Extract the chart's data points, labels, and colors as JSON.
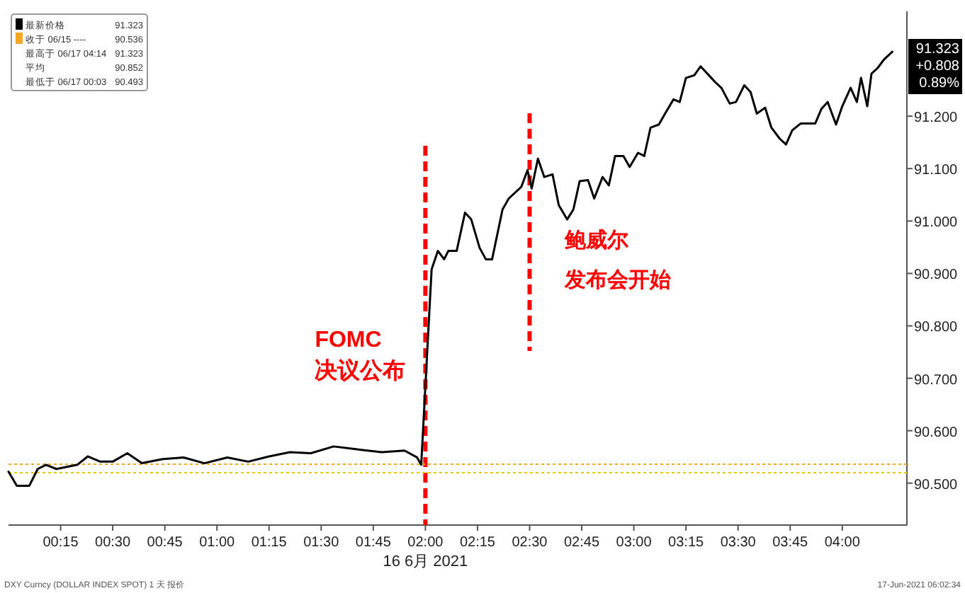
{
  "chart_data": {
    "type": "line",
    "xlabel": "16 6月 2021",
    "x": [
      0,
      0.04,
      0.1,
      0.14,
      0.18,
      0.23,
      0.33,
      0.38,
      0.44,
      0.5,
      0.57,
      0.64,
      0.74,
      0.84,
      0.94,
      1.05,
      1.15,
      1.25,
      1.35,
      1.45,
      1.56,
      1.66,
      1.79,
      1.9,
      1.96,
      1.98,
      2.02,
      2.03,
      2.06,
      2.09,
      2.11,
      2.15,
      2.19,
      2.22,
      2.26,
      2.29,
      2.32,
      2.37,
      2.4,
      2.46,
      2.49,
      2.51,
      2.54,
      2.57,
      2.61,
      2.64,
      2.68,
      2.71,
      2.74,
      2.78,
      2.81,
      2.85,
      2.88,
      2.91,
      2.95,
      2.98,
      3.02,
      3.05,
      3.08,
      3.12,
      3.15,
      3.19,
      3.22,
      3.25,
      3.29,
      3.32,
      3.36,
      3.39,
      3.42,
      3.46,
      3.49,
      3.53,
      3.56,
      3.59,
      3.63,
      3.66,
      3.7,
      3.73,
      3.76,
      3.8,
      3.83,
      3.87,
      3.9,
      3.93,
      3.97,
      4.0,
      4.04,
      4.07,
      4.09,
      4.12,
      4.14,
      4.17,
      4.2,
      4.24
    ],
    "series": [
      {
        "name": "最新价格",
        "color": "#000000",
        "values": [
          90.522,
          90.495,
          90.495,
          90.527,
          90.535,
          90.527,
          90.535,
          90.551,
          90.541,
          90.541,
          90.557,
          90.538,
          90.546,
          90.549,
          90.538,
          90.549,
          90.541,
          90.551,
          90.559,
          90.557,
          90.57,
          90.565,
          90.559,
          90.562,
          90.549,
          90.535,
          90.835,
          90.908,
          90.943,
          90.927,
          90.943,
          90.943,
          91.016,
          91.003,
          90.949,
          90.927,
          90.927,
          91.022,
          91.043,
          91.065,
          91.097,
          91.062,
          91.119,
          91.084,
          91.089,
          91.03,
          91.003,
          91.022,
          91.076,
          91.078,
          91.043,
          91.084,
          91.068,
          91.124,
          91.124,
          91.103,
          91.13,
          91.124,
          91.178,
          91.184,
          91.205,
          91.232,
          91.227,
          91.273,
          91.278,
          91.295,
          91.278,
          91.265,
          91.254,
          91.224,
          91.227,
          91.259,
          91.246,
          91.205,
          91.216,
          91.178,
          91.157,
          91.146,
          91.173,
          91.186,
          91.186,
          91.186,
          91.214,
          91.227,
          91.184,
          91.219,
          91.254,
          91.227,
          91.273,
          91.219,
          91.281,
          91.292,
          91.308,
          91.323
        ]
      }
    ],
    "xlim": [
      0,
      4.31
    ],
    "xticks": [
      {
        "value": 0.25,
        "label": "00:15"
      },
      {
        "value": 0.5,
        "label": "00:30"
      },
      {
        "value": 0.75,
        "label": "00:45"
      },
      {
        "value": 1,
        "label": "01:00"
      },
      {
        "value": 1.25,
        "label": "01:15"
      },
      {
        "value": 1.5,
        "label": "01:30"
      },
      {
        "value": 1.75,
        "label": "01:45"
      },
      {
        "value": 2,
        "label": "02:00"
      },
      {
        "value": 2.25,
        "label": "02:15"
      },
      {
        "value": 2.5,
        "label": "02:30"
      },
      {
        "value": 2.75,
        "label": "02:45"
      },
      {
        "value": 3,
        "label": "03:00"
      },
      {
        "value": 3.25,
        "label": "03:15"
      },
      {
        "value": 3.5,
        "label": "03:30"
      },
      {
        "value": 3.75,
        "label": "03:45"
      },
      {
        "value": 4,
        "label": "04:00"
      }
    ],
    "ylim": [
      90.42,
      91.4
    ],
    "yticks": [
      {
        "value": 90.5,
        "label": "90.500"
      },
      {
        "value": 90.6,
        "label": "90.600"
      },
      {
        "value": 90.7,
        "label": "90.700"
      },
      {
        "value": 90.8,
        "label": "90.800"
      },
      {
        "value": 90.9,
        "label": "90.900"
      },
      {
        "value": 91.0,
        "label": "91.000"
      },
      {
        "value": 91.1,
        "label": "91.100"
      },
      {
        "value": 91.2,
        "label": "91.200"
      }
    ],
    "ref_lines": [
      {
        "axis": "x",
        "value": 2,
        "label": "FOMC",
        "color": "#ff0000",
        "line_style": "dashed"
      },
      {
        "axis": "x",
        "value": 2.5,
        "label": "鲍威尔",
        "color": "#ff0000",
        "line_style": "dashed"
      },
      {
        "axis": "y",
        "value": 90.536,
        "label": "收于 06/15 ----",
        "color": "#f5a623",
        "line_style": "dotted"
      },
      {
        "axis": "y",
        "value": 90.52,
        "color": "#e8c800",
        "line_style": "dotted"
      }
    ],
    "legend": "top left",
    "annotations": [
      "91.323",
      "90.536",
      "最高于 06/17 04:14",
      "91.323",
      "平均",
      "90.852",
      "最低于 06/17 00:03",
      "90.493",
      "91.323\n+0.808\n0.89%",
      "DXY Curncy (DOLLAR INDEX SPOT) 1 天 报价",
      "17-Jun-2021 06:02:34",
      "决议公布",
      "发布会开始"
    ]
  }
}
